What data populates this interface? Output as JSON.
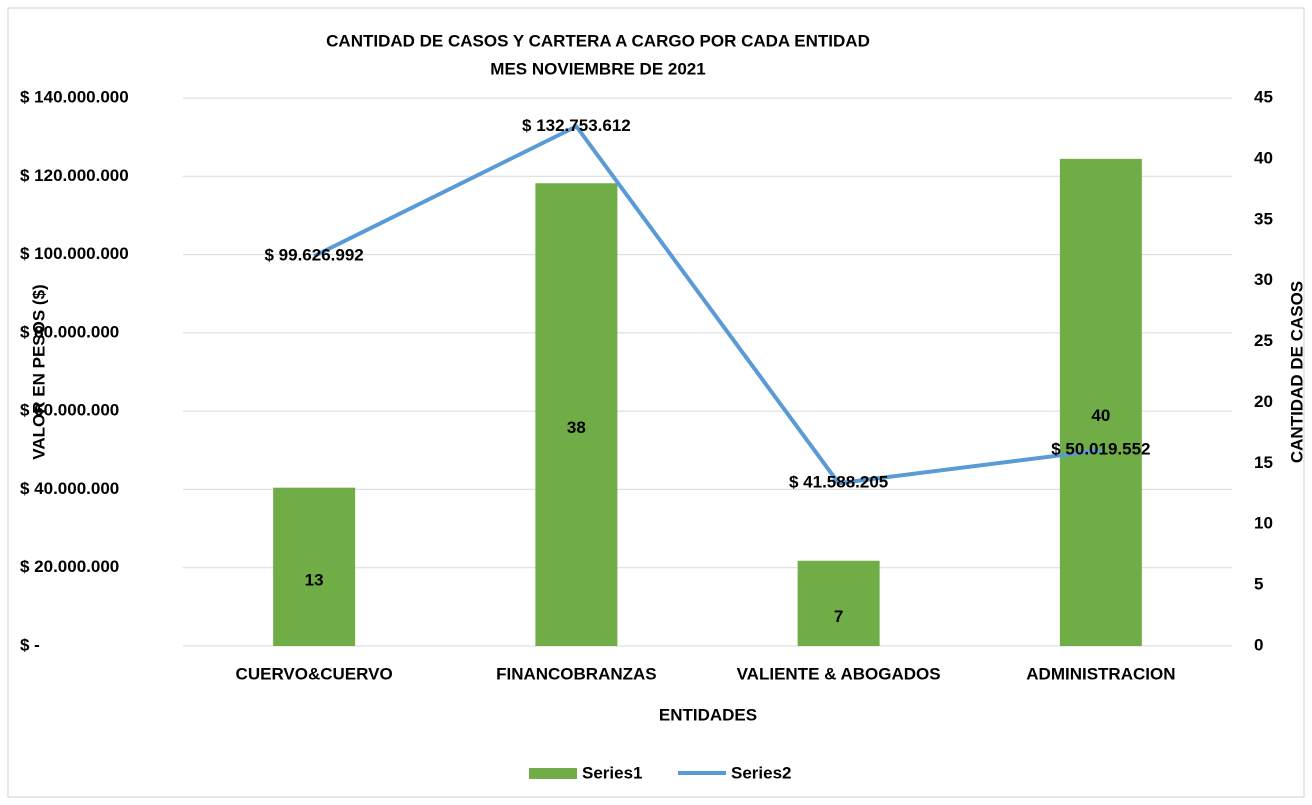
{
  "chart_data": {
    "type": "combo",
    "title": "CANTIDAD DE CASOS Y CARTERA A CARGO POR CADA ENTIDAD",
    "subtitle": "MES NOVIEMBRE DE 2021",
    "xlabel": "ENTIDADES",
    "ylabel": "VALOR EN PESOS ($)",
    "y2label": "CANTIDAD DE CASOS",
    "categories": [
      "CUERVO&CUERVO",
      "FINANCOBRANZAS",
      "VALIENTE & ABOGADOS",
      "ADMINISTRACION"
    ],
    "series": [
      {
        "name": "Series1",
        "type": "bar",
        "axis": "y2",
        "color": "#70ad47",
        "values": [
          13,
          38,
          7,
          40
        ]
      },
      {
        "name": "Series2",
        "type": "line",
        "axis": "y",
        "color": "#5b9bd5",
        "values": [
          99626992,
          132753612,
          41588205,
          50019552
        ],
        "value_labels": [
          "$ 99.626.992",
          "$ 132.753.612",
          "$ 41.588.205",
          "$ 50.019.552"
        ]
      }
    ],
    "ylim": [
      0,
      140000000
    ],
    "yticks": [
      {
        "value": 0,
        "label": "$ -"
      },
      {
        "value": 20000000,
        "label": "$ 20.000.000"
      },
      {
        "value": 40000000,
        "label": "$ 40.000.000"
      },
      {
        "value": 60000000,
        "label": "$ 60.000.000"
      },
      {
        "value": 80000000,
        "label": "$ 80.000.000"
      },
      {
        "value": 100000000,
        "label": "$ 100.000.000"
      },
      {
        "value": 120000000,
        "label": "$ 120.000.000"
      },
      {
        "value": 140000000,
        "label": "$ 140.000.000"
      }
    ],
    "y2lim": [
      0,
      45
    ],
    "y2ticks": [
      0,
      5,
      10,
      15,
      20,
      25,
      30,
      35,
      40,
      45
    ],
    "grid": true,
    "legend": "bottom"
  }
}
